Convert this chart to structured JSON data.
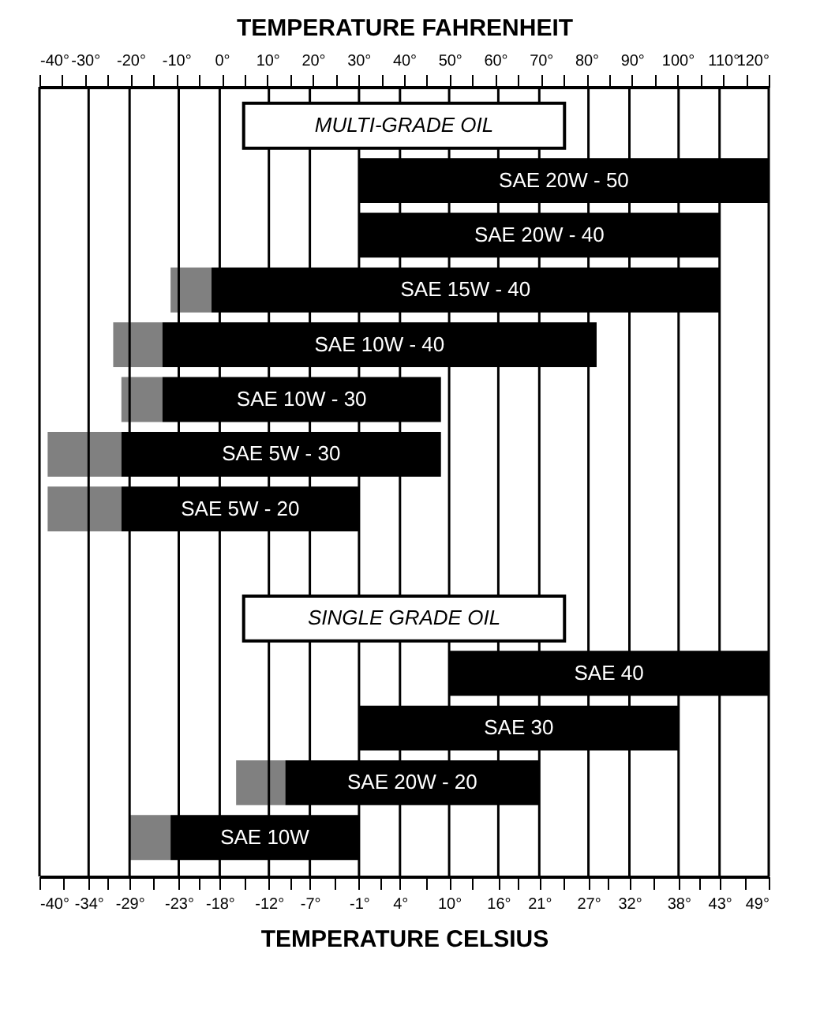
{
  "chart_data": {
    "type": "bar",
    "orientation": "horizontal",
    "x2label": "TEMPERATURE FAHRENHEIT",
    "xlabel": "TEMPERATURE CELSIUS",
    "categories": [
      null,
      "SAE 20W - 50",
      "SAE 20W - 40",
      "SAE 15W - 40",
      "SAE 10W - 40",
      "SAE 10W - 30",
      "SAE 5W - 30",
      "SAE 5W - 20",
      null,
      null,
      "SAE 40",
      "SAE 30",
      "SAE 20W - 20",
      "SAE 10W"
    ],
    "series": [
      {
        "color": "#808080",
        "base": [
          null,
          null,
          null,
          -24,
          -31,
          -30,
          -39,
          -39,
          null,
          null,
          null,
          null,
          -16,
          -29
        ],
        "values": [
          null,
          null,
          null,
          5,
          6,
          5,
          9,
          9,
          null,
          null,
          null,
          null,
          6,
          5
        ]
      },
      {
        "color": "#000000",
        "base": [
          null,
          -1,
          -1,
          -19,
          -25,
          -25,
          -30,
          -30,
          null,
          null,
          10,
          -1,
          -10,
          -24
        ],
        "values": [
          null,
          50,
          44,
          62,
          53,
          34,
          39,
          29,
          null,
          null,
          39,
          39,
          31,
          23
        ]
      }
    ],
    "annotations": [
      "MULTI-GRADE OIL",
      "SINGLE GRADE OIL"
    ],
    "xlim": [
      -40,
      49
    ],
    "xticks": [
      {
        "value": -40,
        "label": "-40°"
      },
      {
        "value": -37.2,
        "label": null
      },
      {
        "value": -34,
        "label": "-34°"
      },
      {
        "value": -31.7,
        "label": null
      },
      {
        "value": -29,
        "label": "-29°"
      },
      {
        "value": -26.1,
        "label": null
      },
      {
        "value": -23,
        "label": "-23°"
      },
      {
        "value": -20.6,
        "label": null
      },
      {
        "value": -18,
        "label": "-18°"
      },
      {
        "value": -15,
        "label": null
      },
      {
        "value": -12,
        "label": "-12°"
      },
      {
        "value": -9.4,
        "label": null
      },
      {
        "value": -7,
        "label": "-7°"
      },
      {
        "value": -3.9,
        "label": null
      },
      {
        "value": -1,
        "label": "-1°"
      },
      {
        "value": 1.7,
        "label": null
      },
      {
        "value": 4,
        "label": "4°"
      },
      {
        "value": 7.2,
        "label": null
      },
      {
        "value": 10,
        "label": "10°"
      },
      {
        "value": 12.8,
        "label": null
      },
      {
        "value": 16,
        "label": "16°"
      },
      {
        "value": 18.3,
        "label": null
      },
      {
        "value": 21,
        "label": "21°"
      },
      {
        "value": 23.9,
        "label": null
      },
      {
        "value": 27,
        "label": "27°"
      },
      {
        "value": 29.4,
        "label": null
      },
      {
        "value": 32,
        "label": "32°"
      },
      {
        "value": 35,
        "label": null
      },
      {
        "value": 38,
        "label": "38°"
      },
      {
        "value": 40.6,
        "label": null
      },
      {
        "value": 43,
        "label": "43°"
      },
      {
        "value": 46.1,
        "label": null
      },
      {
        "value": 49,
        "label": "49°"
      }
    ],
    "x2lim": [
      -40,
      120
    ],
    "x2ticks": [
      {
        "value": -40,
        "label": "-40°"
      },
      {
        "value": -35,
        "label": null
      },
      {
        "value": -30,
        "label": "-30°"
      },
      {
        "value": -25,
        "label": null
      },
      {
        "value": -20,
        "label": "-20°"
      },
      {
        "value": -15,
        "label": null
      },
      {
        "value": -10,
        "label": "-10°"
      },
      {
        "value": -5,
        "label": null
      },
      {
        "value": 0,
        "label": "0°"
      },
      {
        "value": 5,
        "label": null
      },
      {
        "value": 10,
        "label": "10°"
      },
      {
        "value": 15,
        "label": null
      },
      {
        "value": 20,
        "label": "20°"
      },
      {
        "value": 25,
        "label": null
      },
      {
        "value": 30,
        "label": "30°"
      },
      {
        "value": 35,
        "label": null
      },
      {
        "value": 40,
        "label": "40°"
      },
      {
        "value": 45,
        "label": null
      },
      {
        "value": 50,
        "label": "50°"
      },
      {
        "value": 55,
        "label": null
      },
      {
        "value": 60,
        "label": "60°"
      },
      {
        "value": 65,
        "label": null
      },
      {
        "value": 70,
        "label": "70°"
      },
      {
        "value": 75,
        "label": null
      },
      {
        "value": 80,
        "label": "80°"
      },
      {
        "value": 85,
        "label": null
      },
      {
        "value": 90,
        "label": "90°"
      },
      {
        "value": 95,
        "label": null
      },
      {
        "value": 100,
        "label": "100°"
      },
      {
        "value": 105,
        "label": null
      },
      {
        "value": 110,
        "label": "110°"
      },
      {
        "value": 115,
        "label": null
      },
      {
        "value": 120,
        "label": "120°"
      }
    ],
    "grid": "x"
  }
}
